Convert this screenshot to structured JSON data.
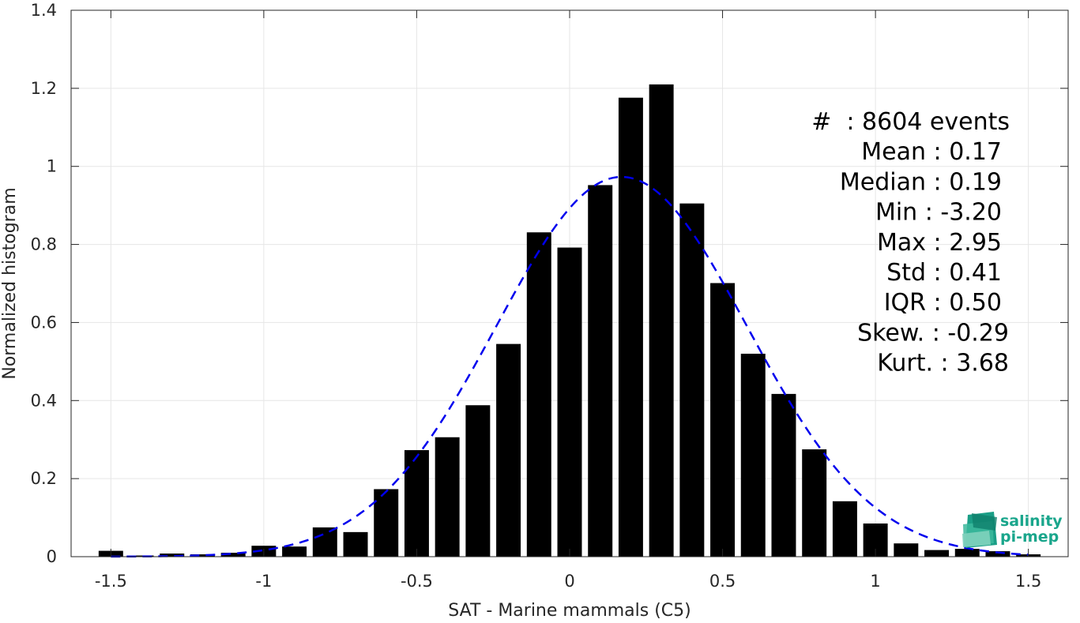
{
  "chart_data": {
    "type": "bar",
    "title": "",
    "xlabel": "SAT - Marine mammals (C5)",
    "ylabel": "Normalized histogram",
    "xlim": [
      -1.63,
      1.63
    ],
    "ylim": [
      0,
      1.4
    ],
    "grid": true,
    "xticks": [
      -1.5,
      -1,
      -0.5,
      0,
      0.5,
      1,
      1.5
    ],
    "xtick_labels": [
      "-1.5",
      "-1",
      "-0.5",
      "0",
      "0.5",
      "1",
      "1.5"
    ],
    "yticks": [
      0,
      0.2,
      0.4,
      0.6,
      0.8,
      1,
      1.2,
      1.4
    ],
    "ytick_labels": [
      "0",
      "0.2",
      "0.4",
      "0.6",
      "0.8",
      "1",
      "1.2",
      "1.4"
    ],
    "bin_width": 0.1,
    "bar_color": "#000000",
    "bars": [
      {
        "x": -1.5,
        "y": 0.015
      },
      {
        "x": -1.4,
        "y": 0.003
      },
      {
        "x": -1.3,
        "y": 0.008
      },
      {
        "x": -1.2,
        "y": 0.006
      },
      {
        "x": -1.1,
        "y": 0.01
      },
      {
        "x": -1.0,
        "y": 0.028
      },
      {
        "x": -0.9,
        "y": 0.026
      },
      {
        "x": -0.8,
        "y": 0.075
      },
      {
        "x": -0.7,
        "y": 0.063
      },
      {
        "x": -0.6,
        "y": 0.173
      },
      {
        "x": -0.5,
        "y": 0.273
      },
      {
        "x": -0.4,
        "y": 0.306
      },
      {
        "x": -0.3,
        "y": 0.388
      },
      {
        "x": -0.2,
        "y": 0.545
      },
      {
        "x": -0.1,
        "y": 0.831
      },
      {
        "x": 0.0,
        "y": 0.792
      },
      {
        "x": 0.1,
        "y": 0.952
      },
      {
        "x": 0.2,
        "y": 1.176
      },
      {
        "x": 0.3,
        "y": 1.21
      },
      {
        "x": 0.4,
        "y": 0.905
      },
      {
        "x": 0.5,
        "y": 0.701
      },
      {
        "x": 0.6,
        "y": 0.52
      },
      {
        "x": 0.7,
        "y": 0.417
      },
      {
        "x": 0.8,
        "y": 0.275
      },
      {
        "x": 0.9,
        "y": 0.142
      },
      {
        "x": 1.0,
        "y": 0.085
      },
      {
        "x": 1.1,
        "y": 0.034
      },
      {
        "x": 1.2,
        "y": 0.017
      },
      {
        "x": 1.3,
        "y": 0.02
      },
      {
        "x": 1.4,
        "y": 0.014
      },
      {
        "x": 1.5,
        "y": 0.006
      }
    ],
    "fit_curve": {
      "type": "gaussian",
      "style": "dashed",
      "color": "#0000ee",
      "mean": 0.17,
      "std": 0.41,
      "x_range": [
        -1.5,
        1.5
      ]
    },
    "stats": [
      {
        "label": "#  : 8604 events"
      },
      {
        "label": "Mean : 0.17"
      },
      {
        "label": "Median : 0.19"
      },
      {
        "label": "Min : -3.20"
      },
      {
        "label": "Max : 2.95"
      },
      {
        "label": "Std : 0.41"
      },
      {
        "label": "IQR : 0.50"
      },
      {
        "label": "Skew. : -0.29"
      },
      {
        "label": "Kurt. : 3.68"
      }
    ]
  },
  "logo": {
    "line1": "salinity",
    "line2": "pi-mep",
    "color": "#1aa68c"
  }
}
